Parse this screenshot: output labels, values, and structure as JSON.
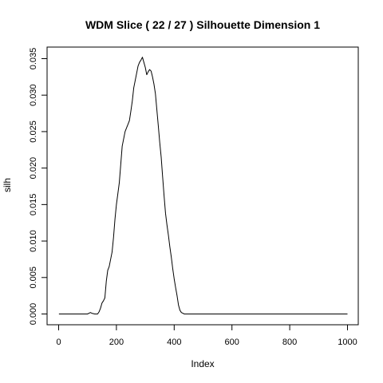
{
  "chart_data": {
    "type": "line",
    "title": "WDM Slice ( 22 / 27 )  Silhouette Dimension 1",
    "xlabel": "Index",
    "ylabel": "silh",
    "xlim": [
      0,
      1000
    ],
    "ylim": [
      0,
      0.035
    ],
    "x_ticks": [
      0,
      200,
      400,
      600,
      800,
      1000
    ],
    "y_ticks": [
      0.0,
      0.005,
      0.01,
      0.015,
      0.02,
      0.025,
      0.03,
      0.035
    ],
    "x_tick_labels": [
      "0",
      "200",
      "400",
      "600",
      "800",
      "1000"
    ],
    "y_tick_labels": [
      "0.000",
      "0.005",
      "0.010",
      "0.015",
      "0.020",
      "0.025",
      "0.030",
      "0.035"
    ],
    "grid": false,
    "series": [
      {
        "color": "#000000",
        "x": [
          1,
          100,
          105,
          110,
          115,
          125,
          135,
          140,
          145,
          150,
          155,
          160,
          165,
          170,
          175,
          180,
          185,
          190,
          195,
          200,
          205,
          210,
          215,
          220,
          225,
          230,
          235,
          240,
          245,
          250,
          255,
          260,
          265,
          270,
          275,
          280,
          285,
          290,
          295,
          300,
          305,
          310,
          315,
          320,
          325,
          330,
          335,
          340,
          345,
          350,
          355,
          360,
          365,
          370,
          375,
          380,
          385,
          390,
          395,
          400,
          405,
          410,
          415,
          420,
          425,
          430,
          435,
          440,
          445,
          450,
          455,
          460,
          465,
          470,
          475,
          480,
          500,
          600,
          700,
          800,
          900,
          1000
        ],
        "y": [
          0.0,
          0.0,
          0.0001,
          0.0002,
          0.0001,
          0.0,
          0.0,
          0.0003,
          0.0008,
          0.0015,
          0.0018,
          0.0022,
          0.0045,
          0.006,
          0.0065,
          0.0075,
          0.0085,
          0.0105,
          0.013,
          0.015,
          0.0165,
          0.018,
          0.0205,
          0.023,
          0.024,
          0.025,
          0.0255,
          0.026,
          0.0265,
          0.0278,
          0.0292,
          0.031,
          0.032,
          0.033,
          0.034,
          0.0345,
          0.0348,
          0.0352,
          0.0345,
          0.0338,
          0.0328,
          0.0332,
          0.0335,
          0.0333,
          0.0325,
          0.0315,
          0.0302,
          0.028,
          0.0258,
          0.0235,
          0.0215,
          0.0188,
          0.0162,
          0.0138,
          0.0122,
          0.0108,
          0.0092,
          0.0078,
          0.0062,
          0.0048,
          0.0036,
          0.0025,
          0.0012,
          0.0005,
          0.0002,
          0.0001,
          0.0,
          0.0,
          0.0,
          0.0,
          0.0,
          0.0,
          0.0,
          0.0,
          0.0,
          0.0,
          0.0,
          0.0,
          0.0,
          0.0,
          0.0,
          0.0
        ]
      }
    ]
  }
}
